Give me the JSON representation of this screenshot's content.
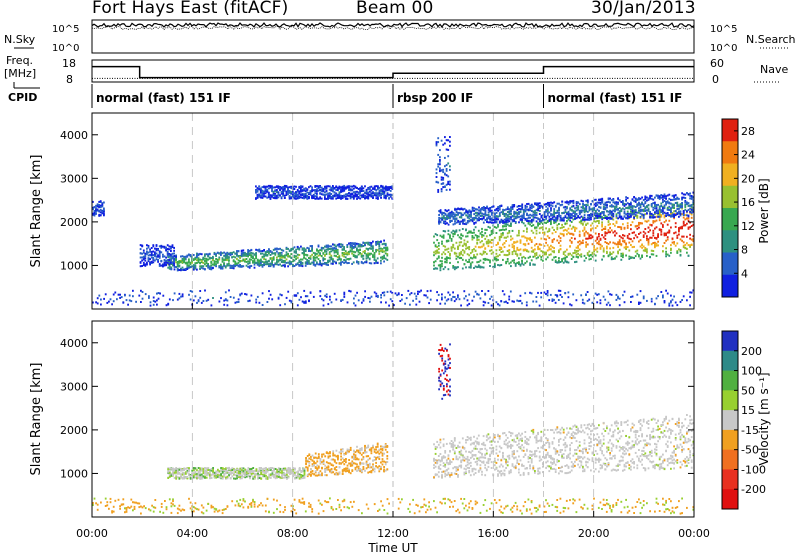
{
  "header": {
    "title": "Fort Hays East (fitACF)",
    "beam": "Beam 00",
    "date": "30/Jan/2013"
  },
  "top_panels": {
    "nsky_label": "N.Sky",
    "nsearch_label": "N.Search",
    "freq_label_line1": "Freq.",
    "freq_label_line2": "[MHz]",
    "nave_label": "Nave",
    "cpid_label": "CPID",
    "noise_ticks": [
      "10^5",
      "10^0"
    ],
    "freq_ticks": [
      "18",
      "8"
    ],
    "nave_ticks": [
      "60",
      "0"
    ]
  },
  "chart_data": [
    {
      "type": "line",
      "name": "noise",
      "series": [
        {
          "name": "N.Sky",
          "note_style": "solid",
          "x_hours": [
            0,
            24
          ],
          "y_level": "approximately constant near upper limit"
        },
        {
          "name": "N.Search",
          "note_style": "dotted",
          "x_hours": [
            0,
            24
          ],
          "y_level": "approximately constant near upper limit"
        }
      ],
      "yticks": [
        "10^5",
        "10^0"
      ]
    },
    {
      "type": "line",
      "name": "frequency_and_nave",
      "freq_segments": [
        {
          "start": 0.0,
          "end": 1.9,
          "value_mhz": 15
        },
        {
          "start": 1.9,
          "end": 12.0,
          "value_mhz": 10
        },
        {
          "start": 12.0,
          "end": 18.0,
          "value_mhz": 12
        },
        {
          "start": 18.0,
          "end": 24.0,
          "value_mhz": 15
        }
      ],
      "freq_ylim": [
        8,
        18
      ],
      "nave_ylim": [
        0,
        60
      ],
      "nave_level": 10
    },
    {
      "type": "table",
      "name": "cpid",
      "segments": [
        {
          "start": 0,
          "end": 12,
          "label": "normal (fast) 151 IF"
        },
        {
          "start": 12,
          "end": 18,
          "label": "rbsp 200 IF"
        },
        {
          "start": 18,
          "end": 24,
          "label": "normal (fast) 151 IF"
        }
      ]
    },
    {
      "type": "heatmap",
      "name": "power",
      "ylabel": "Slant Range [km]",
      "ylim": [
        0,
        4500
      ],
      "yticks": [
        1000,
        2000,
        3000,
        4000
      ],
      "xlim_hours": [
        0,
        24
      ],
      "colorbar_label": "Power [dB]",
      "colorbar_ticks": [
        4,
        8,
        12,
        16,
        20,
        24,
        28
      ],
      "colorbar_range": [
        0,
        30
      ],
      "colors": [
        "#1020e0",
        "#2860c8",
        "#2e9080",
        "#38a850",
        "#98c030",
        "#f0b020",
        "#f07a10",
        "#e02010"
      ],
      "features": [
        {
          "t0": 3.0,
          "t1": 11.8,
          "r0": 900,
          "r1": 1250,
          "level": 12,
          "rise": 350
        },
        {
          "t0": 1.9,
          "t1": 3.3,
          "r0": 1000,
          "r1": 1500,
          "level": 4
        },
        {
          "t0": 0.0,
          "t1": 0.5,
          "r0": 2150,
          "r1": 2500,
          "level": 4
        },
        {
          "t0": 6.5,
          "t1": 12.0,
          "r0": 2550,
          "r1": 2850,
          "level": 4
        },
        {
          "t0": 13.6,
          "t1": 24.0,
          "r0": 900,
          "r1": 1800,
          "level": 20,
          "rise": 700
        },
        {
          "t0": 13.8,
          "t1": 24.0,
          "r0": 1950,
          "r1": 2300,
          "level": 6,
          "rise": 400
        },
        {
          "t0": 13.7,
          "t1": 14.3,
          "r0": 2700,
          "r1": 4000,
          "level": 5
        },
        {
          "t0": 0.0,
          "t1": 24.0,
          "r0": 100,
          "r1": 450,
          "level": 4
        }
      ]
    },
    {
      "type": "heatmap",
      "name": "velocity",
      "ylabel": "Slant Range [km]",
      "ylim": [
        0,
        4500
      ],
      "yticks": [
        1000,
        2000,
        3000,
        4000
      ],
      "xlim_hours": [
        0,
        24
      ],
      "xticks": [
        "00:00",
        "04:00",
        "08:00",
        "12:00",
        "16:00",
        "20:00",
        "00:00"
      ],
      "xlabel": "Time UT",
      "colorbar_label": "Velocity [m s⁻¹]",
      "colorbar_ticks": [
        200,
        100,
        50,
        15,
        -15,
        -50,
        -100,
        -200
      ],
      "colors": [
        "#2030c0",
        "#2e8a88",
        "#50b040",
        "#98d030",
        "#c8c8c8",
        "#f0a020",
        "#f07020",
        "#e83020",
        "#e01010"
      ],
      "features": [
        {
          "t0": 3.0,
          "t1": 8.5,
          "r0": 900,
          "r1": 1150,
          "kind": "grey_green"
        },
        {
          "t0": 8.5,
          "t1": 11.8,
          "r0": 950,
          "r1": 1450,
          "kind": "orange"
        },
        {
          "t0": 13.6,
          "t1": 24.0,
          "r0": 900,
          "r1": 1800,
          "kind": "grey"
        },
        {
          "t0": 13.8,
          "t1": 14.3,
          "r0": 2700,
          "r1": 4000,
          "kind": "red"
        },
        {
          "t0": 0.0,
          "t1": 24.0,
          "r0": 100,
          "r1": 450,
          "kind": "orange_sparse"
        }
      ]
    }
  ]
}
